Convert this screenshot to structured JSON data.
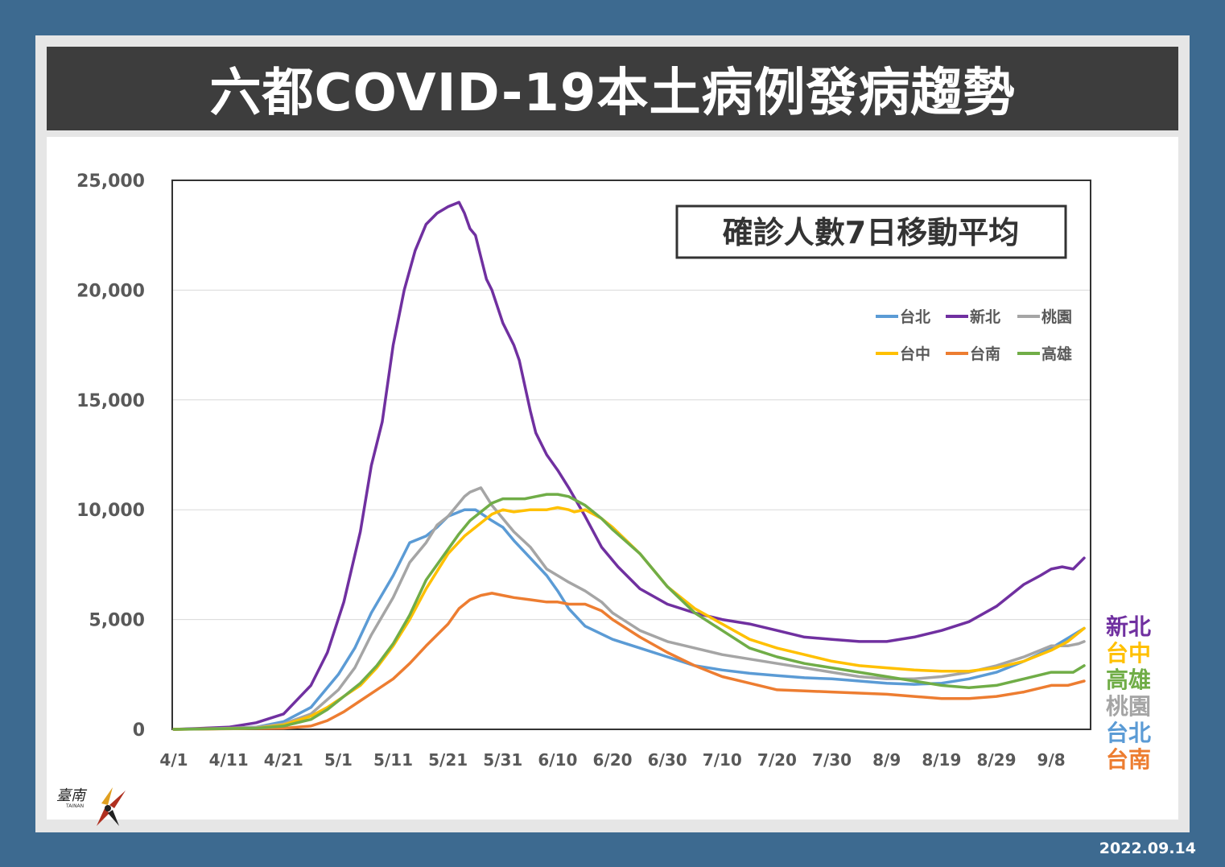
{
  "header": {
    "title": "六都COVID-19本土病例發病趨勢"
  },
  "footer": {
    "date": "2022.09.14"
  },
  "logo": {
    "text": "臺南",
    "sub": "TAINAN"
  },
  "colors": {
    "background": "#3d6a90",
    "title_bar": "#3d3d3d",
    "台北": "#5b9bd5",
    "新北": "#7030a0",
    "桃園": "#a5a5a5",
    "台中": "#ffc000",
    "台南": "#ed7d31",
    "高雄": "#70ad47"
  },
  "chart_data": {
    "type": "line",
    "title": "確診人數7日移動平均",
    "xlabel": "",
    "ylabel": "",
    "ylim": [
      0,
      25000
    ],
    "yticks": [
      0,
      5000,
      10000,
      15000,
      20000,
      25000
    ],
    "ytick_labels": [
      "0",
      "5,000",
      "10,000",
      "15,000",
      "20,000",
      "25,000"
    ],
    "x_tick_labels": [
      "4/1",
      "4/11",
      "4/21",
      "5/1",
      "5/11",
      "5/21",
      "5/31",
      "6/10",
      "6/20",
      "6/30",
      "7/10",
      "7/20",
      "7/30",
      "8/9",
      "8/19",
      "8/29",
      "9/8"
    ],
    "x_day_range": [
      0,
      166
    ],
    "grid": "horizontal",
    "legend_position": "top-right",
    "right_labels": [
      "新北",
      "台中",
      "高雄",
      "桃園",
      "台北",
      "台南"
    ],
    "series": [
      {
        "name": "台北",
        "color": "#5b9bd5",
        "x": [
          0,
          10,
          15,
          20,
          25,
          30,
          33,
          36,
          40,
          43,
          46,
          48,
          50,
          53,
          55,
          58,
          60,
          62,
          65,
          68,
          70,
          72,
          75,
          80,
          85,
          90,
          95,
          100,
          105,
          110,
          115,
          120,
          125,
          130,
          135,
          140,
          145,
          150,
          155,
          160,
          164,
          166
        ],
        "y": [
          0,
          50,
          100,
          350,
          1000,
          2500,
          3700,
          5300,
          7000,
          8500,
          8800,
          9200,
          9700,
          10000,
          10000,
          9500,
          9200,
          8600,
          7800,
          7000,
          6300,
          5500,
          4700,
          4100,
          3700,
          3300,
          2900,
          2700,
          2550,
          2450,
          2350,
          2300,
          2200,
          2100,
          2050,
          2100,
          2300,
          2600,
          3100,
          3700,
          4300,
          4600
        ]
      },
      {
        "name": "新北",
        "color": "#7030a0",
        "x": [
          0,
          10,
          15,
          20,
          25,
          28,
          31,
          34,
          36,
          38,
          40,
          42,
          44,
          46,
          48,
          50,
          52,
          53,
          54,
          55,
          56,
          57,
          58,
          60,
          62,
          63,
          65,
          66,
          68,
          70,
          72,
          75,
          78,
          81,
          85,
          90,
          95,
          100,
          105,
          110,
          115,
          120,
          125,
          130,
          135,
          140,
          145,
          150,
          155,
          158,
          160,
          162,
          164,
          166
        ],
        "y": [
          0,
          100,
          300,
          700,
          2000,
          3500,
          5800,
          9000,
          12000,
          14000,
          17500,
          20000,
          21800,
          23000,
          23500,
          23800,
          24000,
          23500,
          22800,
          22500,
          21500,
          20500,
          20000,
          18500,
          17500,
          16800,
          14500,
          13500,
          12500,
          11800,
          11000,
          9700,
          8300,
          7400,
          6400,
          5700,
          5300,
          5000,
          4800,
          4500,
          4200,
          4100,
          4000,
          4000,
          4200,
          4500,
          4900,
          5600,
          6600,
          7000,
          7300,
          7400,
          7300,
          7800
        ]
      },
      {
        "name": "桃園",
        "color": "#a5a5a5",
        "x": [
          0,
          10,
          15,
          20,
          25,
          30,
          33,
          36,
          40,
          43,
          46,
          48,
          50,
          52,
          53,
          54,
          55,
          56,
          58,
          60,
          62,
          65,
          68,
          70,
          72,
          75,
          78,
          80,
          85,
          90,
          95,
          100,
          105,
          110,
          115,
          120,
          125,
          130,
          135,
          140,
          145,
          150,
          155,
          160,
          163,
          165,
          166
        ],
        "y": [
          0,
          50,
          100,
          250,
          700,
          1800,
          2800,
          4300,
          6000,
          7600,
          8500,
          9300,
          9700,
          10300,
          10600,
          10800,
          10900,
          11000,
          10200,
          9600,
          9000,
          8300,
          7300,
          7000,
          6700,
          6300,
          5800,
          5300,
          4500,
          4000,
          3700,
          3400,
          3200,
          3000,
          2800,
          2600,
          2400,
          2300,
          2300,
          2400,
          2600,
          2900,
          3300,
          3800,
          3800,
          3900,
          4000
        ]
      },
      {
        "name": "台中",
        "color": "#ffc000",
        "x": [
          0,
          15,
          20,
          25,
          28,
          31,
          34,
          37,
          40,
          43,
          46,
          50,
          53,
          56,
          58,
          60,
          62,
          65,
          68,
          70,
          72,
          73,
          75,
          78,
          80,
          85,
          90,
          95,
          100,
          105,
          110,
          115,
          120,
          125,
          130,
          135,
          140,
          145,
          150,
          155,
          160,
          163,
          166
        ],
        "y": [
          0,
          50,
          200,
          600,
          1000,
          1500,
          2000,
          2800,
          3800,
          5000,
          6400,
          8000,
          8800,
          9400,
          9800,
          10000,
          9900,
          10000,
          10000,
          10100,
          10000,
          9900,
          10000,
          9600,
          9200,
          8000,
          6500,
          5500,
          4800,
          4100,
          3700,
          3400,
          3100,
          2900,
          2800,
          2700,
          2650,
          2650,
          2800,
          3100,
          3600,
          4000,
          4600
        ]
      },
      {
        "name": "台南",
        "color": "#ed7d31",
        "x": [
          0,
          20,
          25,
          28,
          31,
          34,
          37,
          40,
          43,
          46,
          50,
          52,
          54,
          56,
          58,
          60,
          62,
          65,
          68,
          70,
          72,
          75,
          78,
          80,
          85,
          90,
          95,
          100,
          105,
          110,
          115,
          120,
          125,
          130,
          135,
          140,
          145,
          150,
          155,
          160,
          163,
          166
        ],
        "y": [
          0,
          50,
          150,
          400,
          800,
          1300,
          1800,
          2300,
          3000,
          3800,
          4800,
          5500,
          5900,
          6100,
          6200,
          6100,
          6000,
          5900,
          5800,
          5800,
          5700,
          5700,
          5400,
          5000,
          4200,
          3500,
          2900,
          2400,
          2100,
          1800,
          1750,
          1700,
          1650,
          1600,
          1500,
          1400,
          1400,
          1500,
          1700,
          2000,
          2000,
          2200
        ]
      },
      {
        "name": "高雄",
        "color": "#70ad47",
        "x": [
          0,
          15,
          20,
          25,
          28,
          31,
          34,
          37,
          40,
          43,
          46,
          50,
          52,
          54,
          56,
          58,
          60,
          62,
          64,
          66,
          68,
          70,
          72,
          75,
          78,
          80,
          85,
          90,
          95,
          100,
          105,
          110,
          115,
          120,
          125,
          130,
          135,
          140,
          145,
          150,
          155,
          160,
          164,
          166
        ],
        "y": [
          0,
          50,
          150,
          450,
          900,
          1500,
          2100,
          2900,
          3900,
          5200,
          6800,
          8200,
          8900,
          9500,
          9900,
          10300,
          10500,
          10500,
          10500,
          10600,
          10700,
          10700,
          10600,
          10200,
          9600,
          9100,
          8000,
          6500,
          5300,
          4500,
          3700,
          3300,
          3000,
          2800,
          2600,
          2400,
          2200,
          2000,
          1900,
          2000,
          2300,
          2600,
          2600,
          2900
        ]
      }
    ]
  }
}
